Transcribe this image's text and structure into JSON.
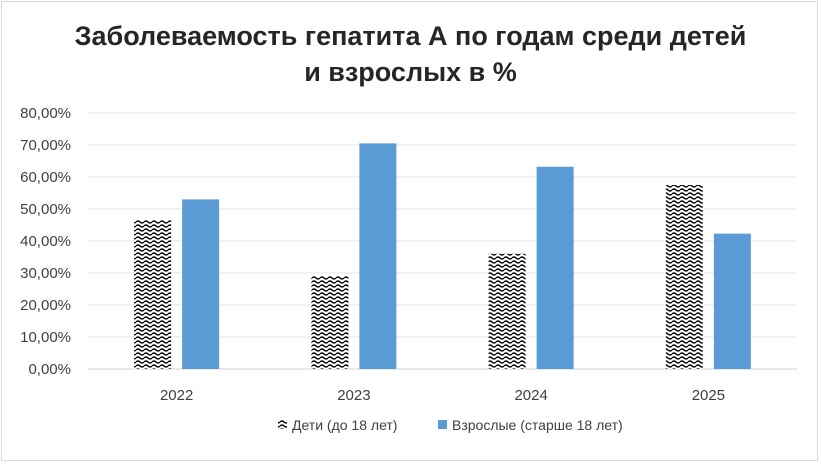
{
  "chart_data": {
    "type": "bar",
    "title_line1": "Заболеваемость гепатита А по годам среди детей",
    "title_line2": "и взрослых в %",
    "categories": [
      "2022",
      "2023",
      "2024",
      "2025"
    ],
    "series": [
      {
        "name": "Дети (до 18 лет)",
        "values": [
          46.5,
          29.0,
          36.0,
          57.5
        ],
        "pattern": "hatched",
        "color": "#000000"
      },
      {
        "name": "Взрослые  (старше 18 лет)",
        "values": [
          53.0,
          70.5,
          63.2,
          42.3
        ],
        "color": "#5b9bd5"
      }
    ],
    "ylim": [
      0,
      80
    ],
    "yticks": [
      "0,00%",
      "10,00%",
      "20,00%",
      "30,00%",
      "40,00%",
      "50,00%",
      "60,00%",
      "70,00%",
      "80,00%"
    ],
    "grid": true,
    "legend_position": "bottom"
  }
}
